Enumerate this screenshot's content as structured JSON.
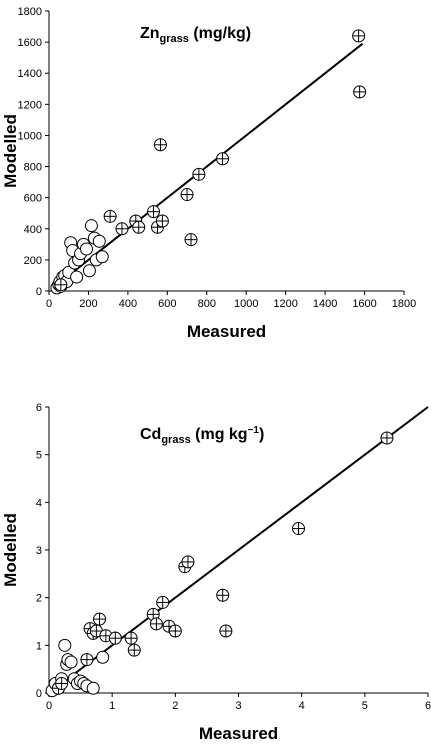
{
  "chart_data": [
    {
      "type": "scatter",
      "title": "Zn",
      "title_subscript": "grass",
      "title_suffix": " (mg/kg)",
      "xlabel": "Measured",
      "ylabel": "Modelled",
      "xlim": [
        0,
        1800
      ],
      "ylim": [
        0,
        1800
      ],
      "xticks": [
        "0",
        "200",
        "400",
        "600",
        "800",
        "1000",
        "1200",
        "1400",
        "1600",
        "1800"
      ],
      "yticks": [
        "0",
        "200",
        "400",
        "600",
        "800",
        "1000",
        "1200",
        "1400",
        "1600",
        "1800"
      ],
      "grid": false,
      "fit_line": {
        "x": [
          35,
          1590
        ],
        "y": [
          35,
          1590
        ]
      },
      "series": [
        {
          "marker": "open-circle",
          "x": [
            40,
            50,
            55,
            60,
            70,
            80,
            90,
            100,
            110,
            120,
            130,
            140,
            150,
            160,
            175,
            190,
            205,
            215,
            230,
            240,
            255,
            270
          ],
          "y": [
            20,
            40,
            60,
            30,
            90,
            100,
            60,
            120,
            310,
            260,
            180,
            90,
            200,
            240,
            300,
            270,
            130,
            420,
            340,
            200,
            320,
            220
          ]
        },
        {
          "marker": "circle-plus",
          "x": [
            60,
            310,
            370,
            440,
            455,
            530,
            550,
            565,
            575,
            700,
            720,
            760,
            880,
            1570,
            1575
          ],
          "y": [
            40,
            480,
            400,
            450,
            410,
            510,
            410,
            940,
            450,
            620,
            330,
            750,
            850,
            1640,
            1280
          ]
        }
      ]
    },
    {
      "type": "scatter",
      "title": "Cd",
      "title_subscript": "grass",
      "title_suffix": " (mg kg",
      "title_superscript": "−1",
      "title_close": ")",
      "xlabel": "Measured",
      "ylabel": "Modelled",
      "xlim": [
        0,
        6
      ],
      "ylim": [
        0,
        6
      ],
      "xticks": [
        "0",
        "1",
        "2",
        "3",
        "4",
        "5",
        "6"
      ],
      "yticks": [
        "0",
        "1",
        "2",
        "3",
        "4",
        "5",
        "6"
      ],
      "grid": false,
      "fit_line": {
        "x": [
          0,
          6
        ],
        "y": [
          0,
          6
        ]
      },
      "series": [
        {
          "marker": "open-circle",
          "x": [
            0.05,
            0.1,
            0.15,
            0.2,
            0.25,
            0.28,
            0.3,
            0.35,
            0.4,
            0.45,
            0.5,
            0.55,
            0.6,
            0.7,
            0.85,
            1.05
          ],
          "y": [
            0.05,
            0.2,
            0.1,
            0.3,
            1.0,
            0.6,
            0.7,
            0.65,
            0.3,
            0.2,
            0.25,
            0.2,
            0.15,
            0.1,
            0.75,
            1.15
          ]
        },
        {
          "marker": "circle-plus",
          "x": [
            0.15,
            0.2,
            0.6,
            0.65,
            0.7,
            0.75,
            0.8,
            0.9,
            1.05,
            1.3,
            1.35,
            1.65,
            1.7,
            1.8,
            1.9,
            2.0,
            2.15,
            2.2,
            2.75,
            2.8,
            3.95,
            5.35
          ],
          "y": [
            0.1,
            0.2,
            0.7,
            1.35,
            1.25,
            1.3,
            1.55,
            1.2,
            1.15,
            1.15,
            0.9,
            1.65,
            1.45,
            1.9,
            1.4,
            1.3,
            2.65,
            2.75,
            2.05,
            1.3,
            3.45,
            5.35
          ]
        }
      ]
    }
  ]
}
